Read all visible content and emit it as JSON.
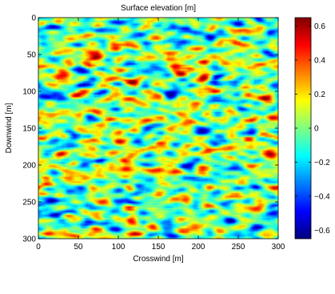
{
  "chart_data": {
    "type": "heatmap",
    "title": "Surface elevation [m]",
    "xlabel": "Crosswind [m]",
    "ylabel": "Downwind [m]",
    "xlim": [
      0,
      300
    ],
    "ylim": [
      0,
      300
    ],
    "y_axis_direction": "top-to-bottom",
    "x_ticks": [
      0,
      50,
      100,
      150,
      200,
      250,
      300
    ],
    "y_ticks": [
      0,
      50,
      100,
      150,
      200,
      250,
      300
    ],
    "x_tick_labels": [
      "0",
      "50",
      "100",
      "150",
      "200",
      "250",
      "300"
    ],
    "y_tick_labels": [
      "0",
      "50",
      "100",
      "150",
      "200",
      "250",
      "300"
    ],
    "colorbar": {
      "colormap": "jet",
      "position": "right",
      "range": [
        -0.65,
        0.65
      ],
      "ticks": [
        0.6,
        0.4,
        0.2,
        0,
        -0.2,
        -0.4,
        -0.6
      ],
      "tick_labels": [
        "0.6",
        "0.4",
        "0.2",
        "0",
        "−0.2",
        "−0.4",
        "−0.6"
      ]
    },
    "field": {
      "description_kind": "random rough surface, elongated crosswind",
      "grid_cols": 150,
      "grid_rows": 150,
      "value_range": [
        -0.65,
        0.65
      ],
      "seed": 7
    },
    "grid": false
  }
}
